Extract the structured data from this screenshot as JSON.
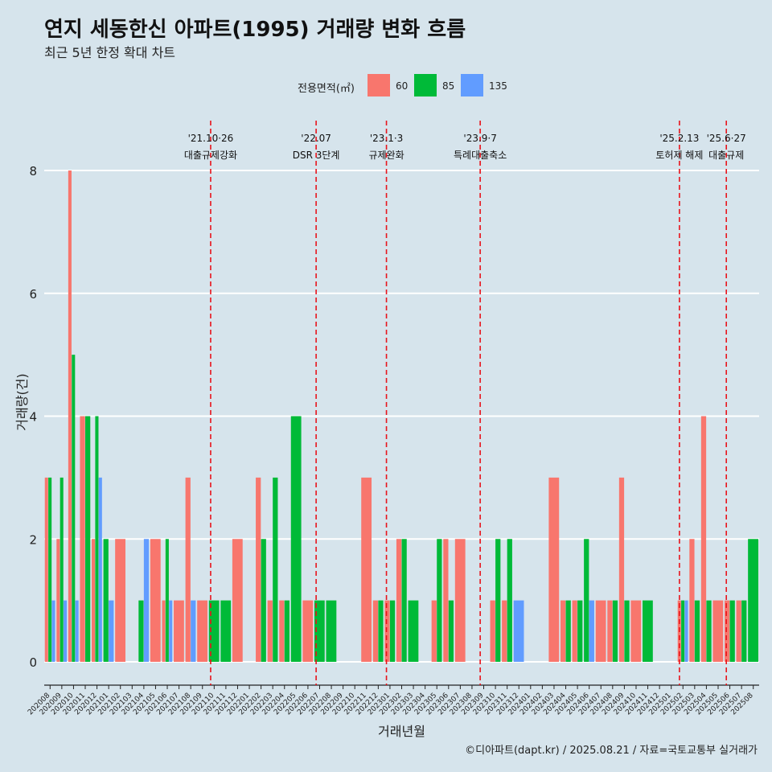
{
  "title": "연지 세동한신 아파트(1995) 거래량 변화 흐름",
  "subtitle": "최근 5년 한정 확대 차트",
  "caption": "©디아파트(dapt.kr) / 2025.08.21 / 자료=국토교통부 실거래가",
  "legend": {
    "title": "전용면적(㎡)",
    "items": [
      {
        "label": "60",
        "color": "#f8766d"
      },
      {
        "label": "85",
        "color": "#00ba38"
      },
      {
        "label": "135",
        "color": "#619cff"
      }
    ]
  },
  "chart_data": {
    "type": "bar",
    "xlabel": "거래년월",
    "ylabel": "거래량(건)",
    "ylim": [
      0,
      8
    ],
    "yticks": [
      0,
      2,
      4,
      6,
      8
    ],
    "grid": true,
    "legend_position": "top",
    "categories": [
      "202008",
      "202009",
      "202010",
      "202011",
      "202012",
      "202101",
      "202102",
      "202103",
      "202104",
      "202105",
      "202106",
      "202107",
      "202108",
      "202109",
      "202110",
      "202111",
      "202112",
      "202201",
      "202202",
      "202203",
      "202204",
      "202205",
      "202206",
      "202207",
      "202208",
      "202209",
      "202210",
      "202211",
      "202212",
      "202301",
      "202302",
      "202303",
      "202304",
      "202305",
      "202306",
      "202307",
      "202308",
      "202309",
      "202310",
      "202311",
      "202312",
      "202401",
      "202402",
      "202403",
      "202404",
      "202405",
      "202406",
      "202407",
      "202408",
      "202409",
      "202410",
      "202411",
      "202412",
      "202501",
      "202502",
      "202503",
      "202504",
      "202505",
      "202506",
      "202507",
      "202508"
    ],
    "series": [
      {
        "name": "60",
        "values": [
          3,
          2,
          8,
          4,
          2,
          0,
          2,
          0,
          0,
          2,
          1,
          1,
          3,
          1,
          0,
          0,
          2,
          0,
          3,
          1,
          1,
          0,
          1,
          0,
          0,
          0,
          0,
          3,
          1,
          1,
          2,
          0,
          0,
          1,
          2,
          2,
          0,
          0,
          1,
          1,
          0,
          0,
          0,
          3,
          1,
          1,
          0,
          1,
          1,
          3,
          1,
          0,
          0,
          0,
          1,
          2,
          4,
          1,
          1,
          1,
          0
        ]
      },
      {
        "name": "85",
        "values": [
          3,
          3,
          5,
          4,
          4,
          2,
          0,
          0,
          1,
          0,
          2,
          0,
          0,
          0,
          1,
          1,
          0,
          0,
          2,
          3,
          1,
          4,
          0,
          1,
          1,
          0,
          0,
          0,
          1,
          1,
          2,
          1,
          0,
          2,
          1,
          0,
          0,
          0,
          2,
          2,
          0,
          0,
          0,
          0,
          1,
          1,
          2,
          0,
          1,
          1,
          0,
          1,
          0,
          0,
          1,
          1,
          1,
          0,
          1,
          1,
          2
        ]
      },
      {
        "name": "135",
        "values": [
          1,
          1,
          1,
          0,
          3,
          1,
          0,
          0,
          2,
          0,
          1,
          0,
          1,
          0,
          0,
          0,
          0,
          0,
          0,
          0,
          0,
          0,
          0,
          0,
          0,
          0,
          0,
          0,
          0,
          0,
          0,
          0,
          0,
          0,
          0,
          0,
          0,
          0,
          0,
          0,
          1,
          0,
          0,
          0,
          0,
          0,
          1,
          0,
          0,
          0,
          0,
          0,
          0,
          0,
          1,
          0,
          0,
          0,
          0,
          0,
          0
        ]
      }
    ],
    "annotations": [
      {
        "x": "202110",
        "date": "'21.10·26",
        "label": "대출규제강화"
      },
      {
        "x": "202207",
        "date": "'22.07",
        "label": "DSR 3단계"
      },
      {
        "x": "202301",
        "date": "'23.1·3",
        "label": "규제완화"
      },
      {
        "x": "202309",
        "date": "'23.9·7",
        "label": "특례대출축소"
      },
      {
        "x": "202502",
        "date": "'25.2.13",
        "label": "토허제 해제"
      },
      {
        "x": "202506",
        "date": "'25.6·27",
        "label": "대출규제"
      }
    ]
  }
}
